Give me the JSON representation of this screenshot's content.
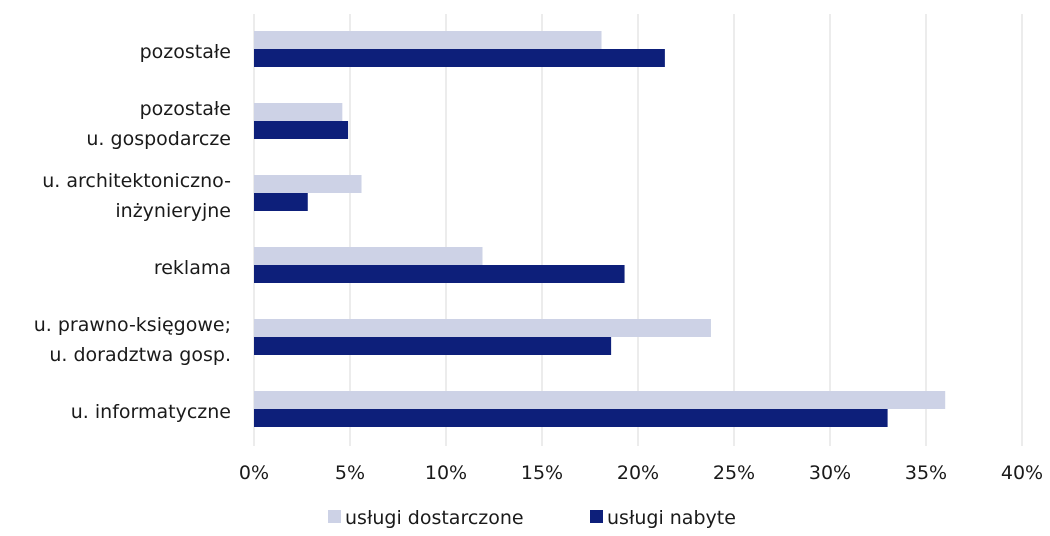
{
  "chart_data": {
    "type": "bar",
    "orientation": "horizontal",
    "categories": [
      [
        "pozostałe"
      ],
      [
        "pozostałe",
        "u. gospodarcze"
      ],
      [
        "u. architektoniczno-",
        "inżynieryjne"
      ],
      [
        "reklama"
      ],
      [
        "u. prawno-księgowe;",
        "u. doradztwa gosp."
      ],
      [
        "u. informatyczne"
      ]
    ],
    "series": [
      {
        "name": "usługi dostarczone",
        "color": "#cdd2e6",
        "values": [
          18.1,
          4.6,
          5.6,
          11.9,
          23.8,
          36.0
        ]
      },
      {
        "name": "usługi nabyte",
        "color": "#0d1f7a",
        "values": [
          21.4,
          4.9,
          2.8,
          19.3,
          18.6,
          33.0
        ]
      }
    ],
    "xlim": [
      0,
      40
    ],
    "xticks": [
      "0%",
      "5%",
      "10%",
      "15%",
      "20%",
      "25%",
      "30%",
      "35%",
      "40%"
    ],
    "grid": "vertical",
    "legend_position": "bottom",
    "gridline_color": "#d9d9d9"
  }
}
